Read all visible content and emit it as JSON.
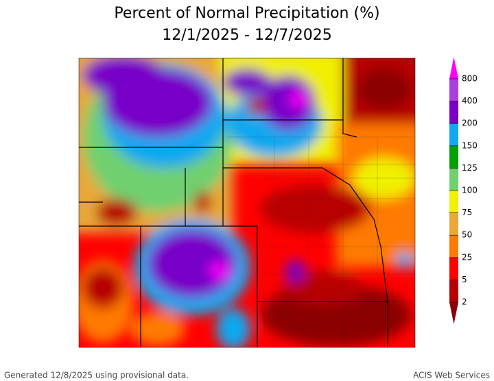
{
  "title": {
    "line1": "Percent of Normal Precipitation (%)",
    "line2": "12/1/2025 - 12/7/2025"
  },
  "legend": {
    "ticks": [
      2,
      5,
      25,
      50,
      75,
      100,
      125,
      150,
      200,
      400,
      800
    ],
    "colors": [
      "#8b0000",
      "#b80000",
      "#ff0000",
      "#ff7a00",
      "#e8a838",
      "#f0f000",
      "#70d070",
      "#00a000",
      "#10a8f0",
      "#7800c8",
      "#a840e0",
      "#ff00ff"
    ]
  },
  "footer": {
    "left": "Generated 12/8/2025 using provisional data.",
    "right": "ACIS Web Services"
  }
}
